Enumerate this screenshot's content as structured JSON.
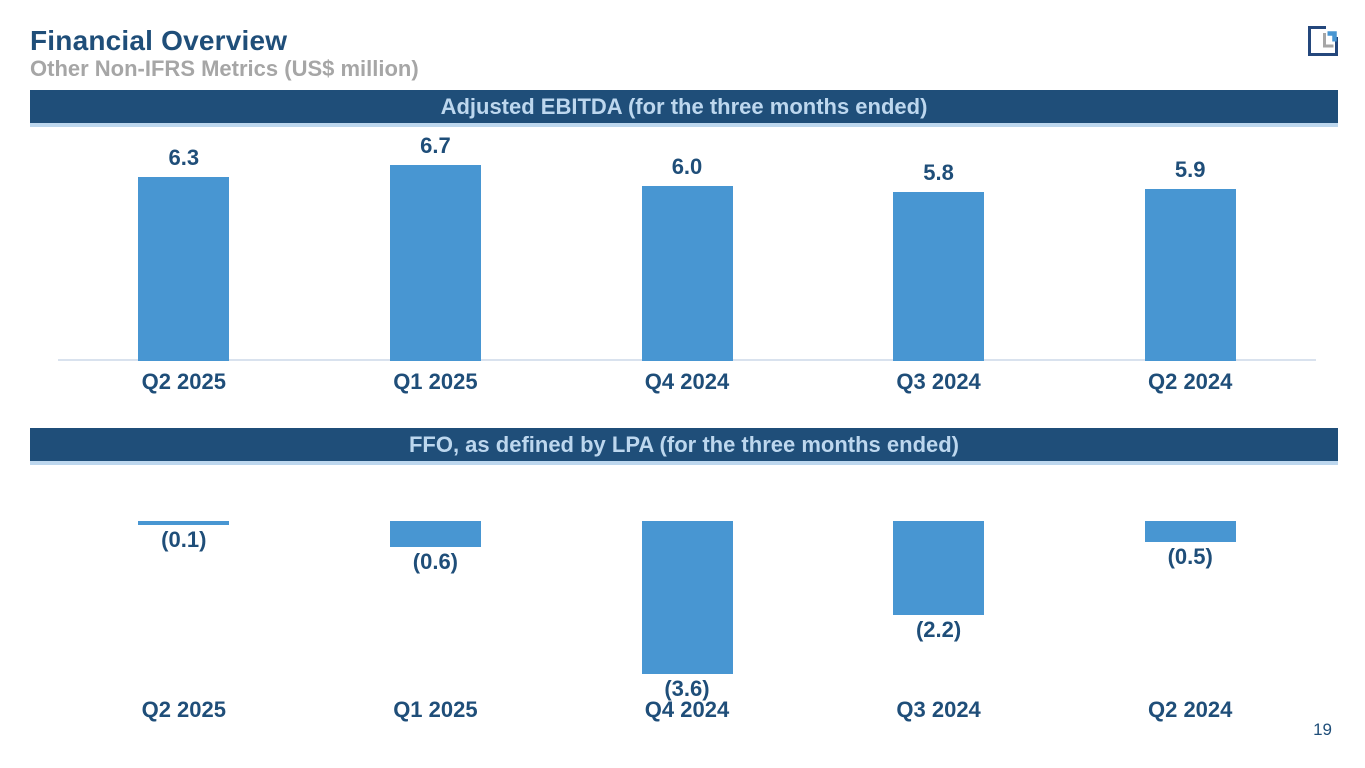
{
  "page": {
    "title": "Financial Overview",
    "subtitle": "Other Non-IFRS Metrics (US$ million)",
    "page_number": "19"
  },
  "logo": {
    "name": "corner-bracket-logo"
  },
  "colors": {
    "navy": "#1F4E79",
    "banner_background": "#1F4E79",
    "banner_text": "#BDD7EE",
    "bar_blue": "#4896D2",
    "subtitle_gray": "#A6A6A6",
    "axis_line": "#D9E2EE"
  },
  "chart_data": [
    {
      "type": "bar",
      "title": "Adjusted EBITDA (for the three months ended)",
      "categories": [
        "Q2 2025",
        "Q1 2025",
        "Q4 2024",
        "Q3 2024",
        "Q2 2024"
      ],
      "values": [
        6.3,
        6.7,
        6.0,
        5.8,
        5.9
      ],
      "data_labels": [
        "6.3",
        "6.7",
        "6.0",
        "5.8",
        "5.9"
      ],
      "ylim": [
        0,
        7
      ],
      "axis_line": true,
      "label_position": "above",
      "legend": "none",
      "grid": false
    },
    {
      "type": "bar",
      "title": "FFO, as defined by LPA (for the three months ended)",
      "categories": [
        "Q2 2025",
        "Q1 2025",
        "Q4 2024",
        "Q3 2024",
        "Q2 2024"
      ],
      "values": [
        -0.1,
        -0.6,
        -3.6,
        -2.2,
        -0.5
      ],
      "data_labels": [
        "(0.1)",
        "(0.6)",
        "(3.6)",
        "(2.2)",
        "(0.5)"
      ],
      "ylim": [
        -4,
        0
      ],
      "axis_line": false,
      "label_position": "below",
      "legend": "none",
      "grid": false
    }
  ]
}
